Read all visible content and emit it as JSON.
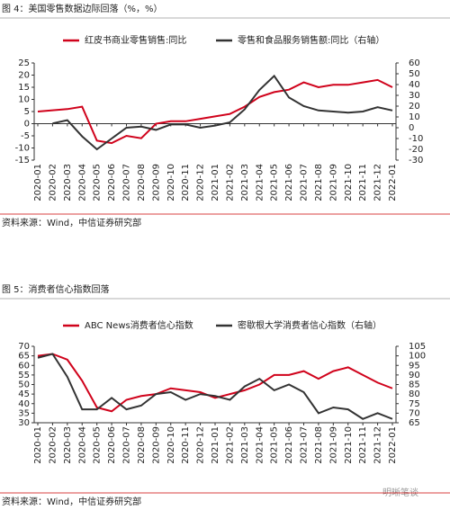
{
  "chart_data": [
    {
      "type": "line",
      "title": "图 4：美国零售数据边际回落（%，%）",
      "note": "资料来源：Wind，中信证券研究部",
      "legend": "top",
      "categories": [
        "2020-01",
        "2020-02",
        "2020-03",
        "2020-04",
        "2020-05",
        "2020-06",
        "2020-07",
        "2020-08",
        "2020-09",
        "2020-10",
        "2020-11",
        "2020-12",
        "2021-01",
        "2021-02",
        "2021-03",
        "2021-04",
        "2021-05",
        "2021-06",
        "2021-07",
        "2021-08",
        "2021-09",
        "2021-10",
        "2021-11",
        "2021-12",
        "2022-01"
      ],
      "ylim": [
        -15,
        25
      ],
      "yticks": [
        -15,
        -10,
        -5,
        0,
        5,
        10,
        15,
        20,
        25
      ],
      "y2lim": [
        -30,
        60
      ],
      "y2ticks": [
        -30,
        -20,
        -10,
        0,
        10,
        20,
        30,
        40,
        50,
        60
      ],
      "series": [
        {
          "name": "红皮书商业零售销售:同比",
          "color": "#d0021b",
          "values": [
            5,
            5.5,
            6,
            7,
            -7,
            -8,
            -5,
            -6,
            0,
            1,
            1,
            2,
            3,
            4,
            7,
            11,
            13,
            14,
            17,
            15,
            16,
            16,
            17,
            18,
            15
          ]
        },
        {
          "name": "零售和食品服务销售额:同比（右轴）",
          "color": "#333333",
          "axis": "y2",
          "values": [
            null,
            4,
            7,
            -8,
            -20,
            -10,
            0,
            1,
            -2,
            3,
            3,
            0,
            2,
            5,
            17,
            35,
            48,
            28,
            20,
            16,
            15,
            14,
            15,
            19,
            16
          ]
        }
      ]
    },
    {
      "type": "line",
      "title": "图 5：消费者信心指数回落",
      "note": "资料来源：Wind，中信证券研究部",
      "legend": "top",
      "categories": [
        "2020-01",
        "2020-02",
        "2020-03",
        "2020-04",
        "2020-05",
        "2020-06",
        "2020-07",
        "2020-08",
        "2020-09",
        "2020-10",
        "2020-11",
        "2020-12",
        "2021-01",
        "2021-02",
        "2021-03",
        "2021-04",
        "2021-05",
        "2021-06",
        "2021-07",
        "2021-08",
        "2021-09",
        "2021-10",
        "2021-11",
        "2021-12",
        "2022-01"
      ],
      "ylim": [
        30,
        70
      ],
      "yticks": [
        30,
        35,
        40,
        45,
        50,
        55,
        60,
        65,
        70
      ],
      "y2lim": [
        65,
        105
      ],
      "y2ticks": [
        65,
        70,
        75,
        80,
        85,
        90,
        95,
        100,
        105
      ],
      "series": [
        {
          "name": "ABC News消费者信心指数",
          "color": "#d0021b",
          "values": [
            65,
            66,
            63,
            52,
            38,
            36,
            42,
            44,
            45,
            48,
            47,
            46,
            43,
            45,
            47,
            50,
            55,
            55,
            57,
            53,
            57,
            59,
            55,
            51,
            48
          ]
        },
        {
          "name": "密歇根大学消费者信心指数（右轴）",
          "color": "#333333",
          "axis": "y2",
          "values": [
            99,
            101,
            89,
            72,
            72,
            78,
            72,
            74,
            80,
            81,
            77,
            80,
            79,
            77,
            84,
            88,
            82,
            85,
            81,
            70,
            73,
            72,
            67,
            70,
            67
          ]
        }
      ]
    }
  ],
  "watermark": "明晰笔谈"
}
